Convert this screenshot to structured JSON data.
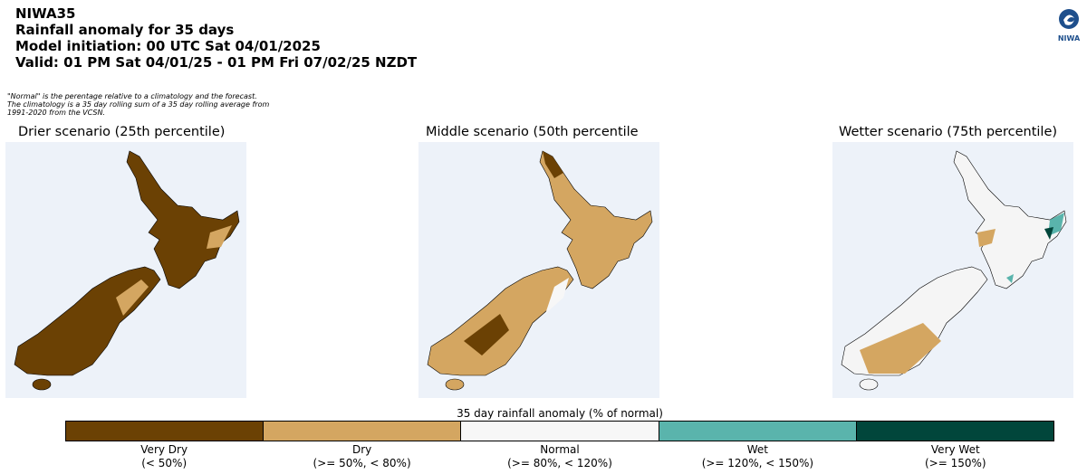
{
  "header": {
    "model": "NIWA35",
    "title": "Rainfall anomaly for 35 days",
    "initiation": "Model initiation: 00 UTC Sat 04/01/2025",
    "valid": "Valid: 01 PM Sat 04/01/25 - 01 PM Fri 07/02/25 NZDT",
    "note": "\"Normal\" is the perentage relative to a climatology and the forecast. The climatology is a 35 day rolling sum of a 35 day rolling average from 1991-2020 from the VCSN.",
    "logo": "NIWA"
  },
  "panels": [
    {
      "title": "Drier scenario (25th percentile)"
    },
    {
      "title": "Middle scenario (50th percentile"
    },
    {
      "title": "Wetter scenario (75th percentile)"
    }
  ],
  "colorbar": {
    "label": "35 day rainfall anomaly (% of normal)",
    "classes": [
      {
        "name": "Very Dry",
        "range": "(< 50%)",
        "color": "#6b4104"
      },
      {
        "name": "Dry",
        "range": "(>= 50%, < 80%)",
        "color": "#d4a661"
      },
      {
        "name": "Normal",
        "range": "(>= 80%, < 120%)",
        "color": "#f7f7f7"
      },
      {
        "name": "Wet",
        "range": "(>= 120%, < 150%)",
        "color": "#5ab4ac"
      },
      {
        "name": "Very Wet",
        "range": "(>= 150%)",
        "color": "#01463b"
      }
    ]
  }
}
